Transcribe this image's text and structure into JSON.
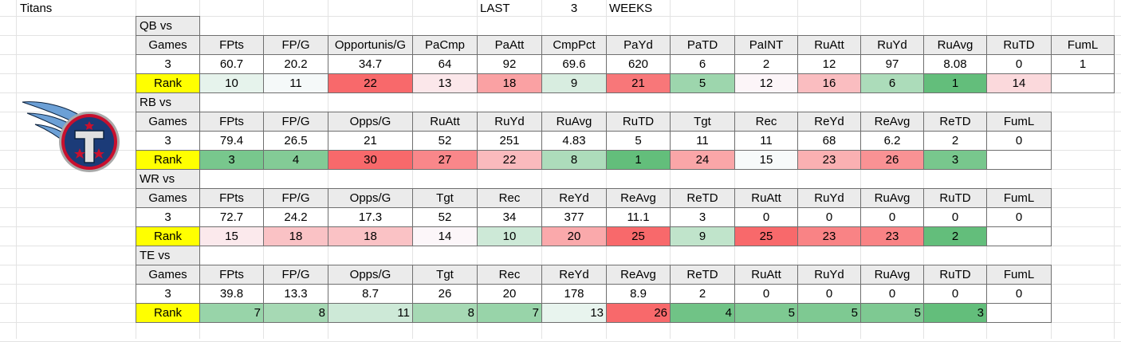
{
  "sheet": {
    "team": "Titans",
    "period": [
      "LAST",
      3,
      "WEEKS"
    ]
  },
  "sections": [
    {
      "label": "QB vs",
      "rank_label": "Rank",
      "rank_align": "center",
      "headers": [
        "Games",
        "FPts",
        "FP/G",
        "Opportunis/G",
        "PaCmp",
        "PaAtt",
        "CmpPct",
        "PaYd",
        "PaTD",
        "PaINT",
        "RuAtt",
        "RuYd",
        "RuAvg",
        "RuTD",
        "FumL"
      ],
      "values": [
        3,
        60.7,
        20.2,
        34.7,
        64,
        92,
        69.6,
        620,
        6,
        2,
        12,
        97,
        8.08,
        0,
        1
      ],
      "ranks": [
        10,
        11,
        22,
        13,
        18,
        9,
        21,
        5,
        12,
        16,
        6,
        1,
        14
      ]
    },
    {
      "label": "RB vs",
      "rank_label": "Rank",
      "rank_align": "center",
      "headers": [
        "Games",
        "FPts",
        "FP/G",
        "Opps/G",
        "RuAtt",
        "RuYd",
        "RuAvg",
        "RuTD",
        "Tgt",
        "Rec",
        "ReYd",
        "ReAvg",
        "ReTD",
        "FumL"
      ],
      "values": [
        3,
        79.4,
        26.5,
        21,
        52,
        251,
        4.83,
        5,
        11,
        11,
        68,
        6.2,
        2,
        0
      ],
      "ranks": [
        3,
        4,
        30,
        27,
        22,
        8,
        1,
        24,
        15,
        23,
        26,
        3
      ]
    },
    {
      "label": "WR vs",
      "rank_label": "Rank",
      "rank_align": "center",
      "headers": [
        "Games",
        "FPts",
        "FP/G",
        "Opps/G",
        "Tgt",
        "Rec",
        "ReYd",
        "ReAvg",
        "ReTD",
        "RuAtt",
        "RuYd",
        "RuAvg",
        "RuTD",
        "FumL"
      ],
      "values": [
        3,
        72.7,
        24.2,
        17.3,
        52,
        34,
        377,
        11.1,
        3,
        0,
        0,
        0,
        0,
        0
      ],
      "ranks": [
        15,
        18,
        18,
        14,
        10,
        20,
        25,
        9,
        25,
        23,
        23,
        2
      ]
    },
    {
      "label": "TE vs",
      "rank_label": "Rank",
      "rank_align": "right",
      "headers": [
        "Games",
        "FPts",
        "FP/G",
        "Opps/G",
        "Tgt",
        "Rec",
        "ReYd",
        "ReAvg",
        "ReTD",
        "RuAtt",
        "RuYd",
        "RuAvg",
        "RuTD",
        "FumL"
      ],
      "values": [
        3,
        39.8,
        13.3,
        8.7,
        26,
        20,
        178,
        8.9,
        2,
        0,
        0,
        0,
        0,
        0
      ],
      "ranks": [
        7,
        8,
        11,
        8,
        7,
        13,
        26,
        4,
        5,
        5,
        5,
        3
      ]
    }
  ]
}
